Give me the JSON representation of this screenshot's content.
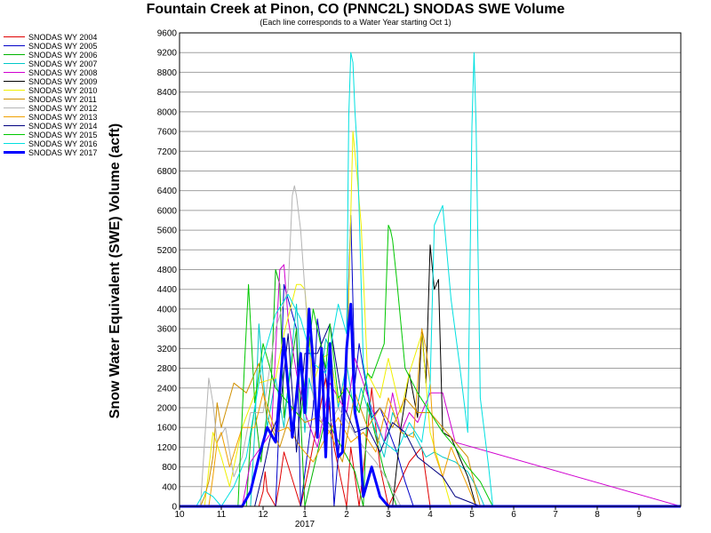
{
  "chart_data": {
    "type": "line",
    "title": "Fountain Creek at Pinon, CO (PNNC2L) SNODAS SWE Volume",
    "subtitle": "(Each line corresponds to a Water Year starting Oct 1)",
    "xlabel": "",
    "ylabel": "Snow Water Equivalent (SWE) Volume (acft)",
    "ylim": [
      0,
      9600
    ],
    "yticks": [
      0,
      400,
      800,
      1200,
      1600,
      2000,
      2400,
      2800,
      3200,
      3600,
      4000,
      4400,
      4800,
      5200,
      5600,
      6000,
      6400,
      6800,
      7200,
      7600,
      8000,
      8400,
      8800,
      9200,
      9600
    ],
    "xlim": [
      0,
      12
    ],
    "xticks": [
      {
        "pos": 0,
        "label": "10"
      },
      {
        "pos": 1,
        "label": "11"
      },
      {
        "pos": 2,
        "label": "12"
      },
      {
        "pos": 3,
        "label": "1"
      },
      {
        "pos": 4,
        "label": "2"
      },
      {
        "pos": 5,
        "label": "3"
      },
      {
        "pos": 6,
        "label": "4"
      },
      {
        "pos": 7,
        "label": "5"
      },
      {
        "pos": 8,
        "label": "6"
      },
      {
        "pos": 9,
        "label": "7"
      },
      {
        "pos": 10,
        "label": "8"
      },
      {
        "pos": 11,
        "label": "9"
      }
    ],
    "xyear_label": "2017",
    "grid": "horizontal",
    "legend": "left",
    "series": [
      {
        "name": "SNODAS WY 2004",
        "color": "#e00000",
        "width": 1,
        "x": [
          0,
          1.9,
          2.0,
          2.05,
          2.1,
          2.3,
          2.4,
          2.5,
          2.9,
          3.1,
          3.3,
          3.5,
          3.7,
          4.0,
          4.1,
          4.2,
          4.3,
          4.5,
          4.6,
          4.8,
          5.0,
          5.5,
          5.8,
          6.0,
          12
        ],
        "y": [
          0,
          0,
          300,
          700,
          300,
          0,
          500,
          1100,
          0,
          800,
          1700,
          2600,
          1200,
          0,
          1200,
          600,
          0,
          1500,
          2400,
          800,
          0,
          900,
          1200,
          0,
          0
        ]
      },
      {
        "name": "SNODAS WY 2005",
        "color": "#0000c8",
        "width": 1,
        "x": [
          0,
          2.3,
          2.4,
          2.5,
          2.8,
          2.9,
          3.2,
          3.3,
          3.6,
          3.7,
          4.0,
          4.05,
          4.1,
          4.2,
          4.3,
          4.6,
          4.8,
          5.2,
          5.4,
          5.6,
          12
        ],
        "y": [
          0,
          0,
          2000,
          4500,
          3600,
          0,
          2000,
          3800,
          2100,
          0,
          3100,
          4600,
          5900,
          2500,
          3300,
          1800,
          2000,
          1100,
          500,
          0,
          0
        ]
      },
      {
        "name": "SNODAS WY 2006",
        "color": "#00b400",
        "width": 1,
        "x": [
          0,
          1.6,
          1.7,
          1.8,
          1.95,
          2.2,
          2.3,
          2.4,
          2.5,
          2.8,
          3.0,
          3.5,
          4.2,
          4.4,
          4.5,
          4.9,
          5.2,
          5.4,
          12
        ],
        "y": [
          0,
          0,
          1400,
          2000,
          900,
          2600,
          4800,
          4500,
          1800,
          3600,
          0,
          1800,
          700,
          0,
          2100,
          700,
          0,
          0,
          0
        ]
      },
      {
        "name": "SNODAS WY 2007",
        "color": "#00c8c8",
        "width": 1,
        "x": [
          0,
          1.7,
          1.8,
          1.9,
          2.1,
          2.3,
          2.5,
          2.8,
          3.0,
          3.1,
          3.3,
          3.5,
          3.6,
          3.8,
          4.0,
          4.2,
          4.35,
          4.5,
          4.7,
          4.9,
          5.1,
          5.4,
          5.6,
          5.9,
          6.1,
          6.3,
          6.6,
          6.9,
          7.1,
          7.3,
          12
        ],
        "y": [
          0,
          0,
          1500,
          3700,
          1600,
          2600,
          1600,
          4100,
          1500,
          2600,
          1900,
          3400,
          3200,
          2000,
          2900,
          1800,
          2400,
          2000,
          1500,
          1000,
          1900,
          1400,
          1500,
          1000,
          1100,
          1000,
          900,
          700,
          400,
          0,
          0
        ]
      },
      {
        "name": "SNODAS WY 2008",
        "color": "#d000d0",
        "width": 1,
        "x": [
          0,
          1.5,
          1.7,
          1.95,
          2.2,
          2.4,
          2.5,
          2.6,
          2.8,
          3.0,
          3.3,
          3.6,
          4.0,
          4.2,
          4.6,
          4.9,
          5.1,
          5.3,
          5.5,
          5.7,
          6.0,
          6.3,
          6.6,
          12
        ],
        "y": [
          0,
          0,
          900,
          1200,
          1500,
          4800,
          4900,
          3800,
          2700,
          1900,
          1200,
          2500,
          1900,
          3000,
          2000,
          1300,
          2300,
          1500,
          1900,
          1700,
          2300,
          2300,
          1300,
          0
        ]
      },
      {
        "name": "SNODAS WY 2009",
        "color": "#000000",
        "width": 1,
        "x": [
          0,
          5.1,
          5.3,
          5.5,
          5.7,
          5.8,
          5.9,
          6.0,
          6.1,
          6.2,
          6.3,
          6.5,
          6.7,
          6.9,
          7.1,
          12
        ],
        "y": [
          0,
          0,
          1600,
          2700,
          1800,
          3600,
          2500,
          5300,
          4400,
          4600,
          1500,
          1400,
          1000,
          600,
          0,
          0
        ]
      },
      {
        "name": "SNODAS WY 2010",
        "color": "#f0f000",
        "width": 1,
        "x": [
          0,
          0.6,
          0.8,
          1.0,
          1.2,
          1.5,
          1.9,
          2.3,
          2.5,
          2.8,
          2.9,
          3.0,
          3.2,
          3.4,
          3.6,
          3.8,
          4.0,
          4.15,
          4.25,
          4.35,
          4.5,
          4.8,
          5.0,
          5.3,
          5.5,
          5.8,
          6.0,
          6.5,
          12
        ],
        "y": [
          0,
          0,
          1500,
          1000,
          400,
          1600,
          2500,
          2600,
          3500,
          4500,
          4500,
          4400,
          2500,
          3000,
          3100,
          2100,
          2600,
          7600,
          6700,
          5700,
          2700,
          2200,
          3000,
          1900,
          2700,
          3500,
          1500,
          0,
          0
        ]
      },
      {
        "name": "SNODAS WY 2011",
        "color": "#d09000",
        "width": 1,
        "x": [
          0,
          0.5,
          0.6,
          0.7,
          0.8,
          0.9,
          1.0,
          1.3,
          1.6,
          1.9,
          2.1,
          2.4,
          2.7,
          3.0,
          3.3,
          3.6,
          3.9,
          4.2,
          4.5,
          4.8,
          5.1,
          5.4,
          5.7,
          6.0,
          6.3,
          6.6,
          6.9,
          7.2,
          12
        ],
        "y": [
          0,
          0,
          200,
          500,
          1000,
          2100,
          1600,
          2500,
          2300,
          2900,
          1800,
          1200,
          2000,
          1700,
          1800,
          1500,
          900,
          2300,
          1600,
          2000,
          1600,
          2200,
          1900,
          1900,
          1600,
          1300,
          1000,
          0,
          0
        ]
      },
      {
        "name": "SNODAS WY 2012",
        "color": "#b4b4b4",
        "width": 1,
        "x": [
          0,
          0.5,
          0.7,
          0.8,
          0.9,
          1.1,
          1.3,
          1.5,
          1.7,
          2.0,
          2.3,
          2.6,
          2.7,
          2.75,
          2.8,
          2.9,
          3.0,
          3.1,
          3.2,
          3.5,
          3.8,
          4.1,
          4.4,
          4.7,
          5.0,
          5.3,
          12
        ],
        "y": [
          0,
          0,
          2600,
          2100,
          1300,
          1600,
          600,
          1000,
          1900,
          1900,
          3600,
          4400,
          6300,
          6500,
          6300,
          5600,
          4400,
          3200,
          2200,
          1500,
          2000,
          1600,
          1200,
          900,
          500,
          0,
          0
        ]
      },
      {
        "name": "SNODAS WY 2013",
        "color": "#f0a000",
        "width": 1,
        "x": [
          0,
          0.7,
          0.8,
          0.9,
          1.0,
          1.2,
          1.5,
          1.8,
          2.0,
          2.3,
          2.6,
          2.9,
          3.2,
          3.5,
          3.8,
          4.1,
          4.4,
          4.7,
          5.0,
          5.3,
          5.6,
          5.8,
          5.9,
          6.0,
          6.1,
          6.3,
          6.5,
          6.8,
          7.1,
          12
        ],
        "y": [
          0,
          0,
          600,
          1300,
          1500,
          800,
          1600,
          1600,
          2300,
          1500,
          1600,
          1200,
          900,
          1400,
          1800,
          1300,
          1500,
          1100,
          2200,
          1500,
          1400,
          3600,
          3200,
          2500,
          1100,
          600,
          1200,
          600,
          0,
          0
        ]
      },
      {
        "name": "SNODAS WY 2014",
        "color": "#000080",
        "width": 1,
        "x": [
          0,
          1.8,
          2.0,
          2.2,
          2.4,
          2.6,
          2.8,
          3.0,
          3.3,
          3.6,
          3.9,
          4.2,
          4.5,
          4.8,
          5.1,
          5.4,
          5.7,
          6.0,
          6.3,
          6.6,
          6.9,
          7.2,
          12
        ],
        "y": [
          0,
          0,
          700,
          1500,
          1900,
          3500,
          1100,
          3100,
          3100,
          3700,
          2100,
          1500,
          1600,
          1100,
          1700,
          1500,
          1000,
          800,
          600,
          200,
          100,
          0,
          0
        ]
      },
      {
        "name": "SNODAS WY 2015",
        "color": "#00c800",
        "width": 1,
        "x": [
          0,
          1.4,
          1.55,
          1.65,
          1.8,
          2.0,
          2.3,
          2.6,
          2.9,
          3.2,
          3.5,
          3.6,
          3.8,
          4.0,
          4.3,
          4.5,
          4.6,
          4.9,
          5.0,
          5.05,
          5.1,
          5.2,
          5.4,
          5.7,
          6.0,
          6.3,
          6.6,
          6.9,
          7.2,
          7.5,
          12
        ],
        "y": [
          0,
          0,
          2800,
          4500,
          2100,
          3300,
          2400,
          2100,
          1800,
          4000,
          2800,
          3700,
          2200,
          2400,
          1900,
          2700,
          2600,
          3300,
          5700,
          5600,
          5400,
          4600,
          2800,
          2300,
          1900,
          1500,
          1200,
          800,
          500,
          0,
          0
        ]
      },
      {
        "name": "SNODAS WY 2016",
        "color": "#00e0e0",
        "width": 1,
        "x": [
          0,
          0.4,
          0.6,
          0.8,
          1.0,
          1.3,
          1.6,
          1.8,
          2.0,
          2.3,
          2.6,
          2.9,
          3.2,
          3.5,
          3.8,
          4.0,
          4.05,
          4.1,
          4.15,
          4.2,
          4.25,
          4.3,
          4.4,
          4.6,
          4.9,
          5.2,
          5.5,
          5.8,
          6.0,
          6.1,
          6.3,
          6.5,
          6.7,
          6.9,
          7.0,
          7.05,
          7.1,
          7.2,
          7.4,
          7.5,
          12
        ],
        "y": [
          0,
          0,
          300,
          200,
          0,
          400,
          1000,
          2000,
          3000,
          3900,
          4300,
          3800,
          2900,
          2700,
          4100,
          3500,
          7900,
          9200,
          9000,
          8000,
          7300,
          6000,
          2900,
          1900,
          1300,
          1100,
          1700,
          1300,
          2500,
          5700,
          6100,
          4200,
          2900,
          1500,
          7700,
          9200,
          7700,
          2200,
          800,
          0,
          0
        ]
      },
      {
        "name": "SNODAS WY 2017",
        "color": "#0000ff",
        "width": 3,
        "x": [
          0,
          1.5,
          1.7,
          1.9,
          2.1,
          2.3,
          2.5,
          2.7,
          2.9,
          3.0,
          3.1,
          3.2,
          3.3,
          3.4,
          3.5,
          3.6,
          3.7,
          3.8,
          3.9,
          4.0,
          4.1,
          4.2,
          4.3,
          4.4,
          4.6,
          4.8,
          5.0,
          5.4,
          12
        ],
        "y": [
          0,
          0,
          300,
          1000,
          1600,
          1300,
          3400,
          1400,
          3100,
          1900,
          4000,
          2900,
          1400,
          3200,
          1000,
          3300,
          1700,
          1000,
          1100,
          3200,
          4100,
          1900,
          1500,
          200,
          800,
          200,
          0,
          0,
          0
        ]
      }
    ]
  }
}
